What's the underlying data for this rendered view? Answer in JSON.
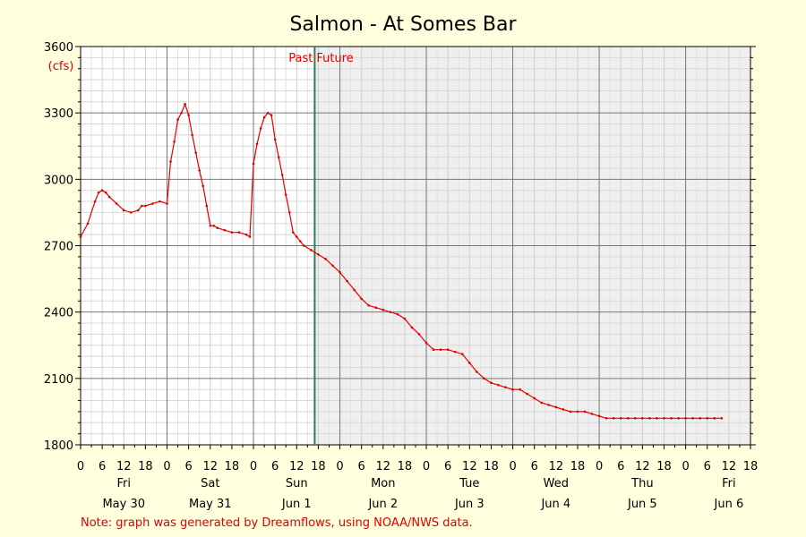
{
  "chart_data": {
    "type": "line",
    "title": "Salmon - At Somes Bar",
    "units": "(cfs)",
    "ylim": [
      1800,
      3600
    ],
    "y_ticks": [
      1800,
      2100,
      2400,
      2700,
      3000,
      3300,
      3600
    ],
    "x_range_hours": [
      0,
      186
    ],
    "hour_ticks": [
      "0",
      "6",
      "12",
      "18",
      "0",
      "6",
      "12",
      "18",
      "0",
      "6",
      "12",
      "18",
      "0",
      "6",
      "12",
      "18",
      "0",
      "6",
      "12",
      "18",
      "0",
      "6",
      "12",
      "18",
      "0",
      "6",
      "12",
      "18",
      "0",
      "6",
      "12",
      "18"
    ],
    "days": [
      {
        "weekday": "Fri",
        "date": "May 30"
      },
      {
        "weekday": "Sat",
        "date": "May 31"
      },
      {
        "weekday": "Sun",
        "date": "Jun 1"
      },
      {
        "weekday": "Mon",
        "date": "Jun 2"
      },
      {
        "weekday": "Tue",
        "date": "Jun 3"
      },
      {
        "weekday": "Wed",
        "date": "Jun 4"
      },
      {
        "weekday": "Thu",
        "date": "Jun 5"
      },
      {
        "weekday": "Fri",
        "date": "Jun 6"
      }
    ],
    "now_hour": 65,
    "past_label": "Past",
    "future_label": "Future",
    "note": "Note: graph was generated by Dreamflows, using NOAA/NWS data.",
    "series": [
      {
        "color": "#e00000",
        "x": [
          0,
          2,
          4,
          5,
          6,
          7,
          8,
          10,
          12,
          14,
          16,
          17,
          18,
          20,
          22,
          24,
          25,
          26,
          27,
          28,
          29,
          30,
          31,
          32,
          33,
          34,
          35,
          36,
          37,
          38,
          40,
          42,
          44,
          46,
          47,
          48,
          49,
          50,
          51,
          52,
          53,
          54,
          55,
          56,
          57,
          58,
          59,
          60,
          61,
          62,
          64,
          66,
          68,
          70,
          72,
          74,
          76,
          78,
          80,
          82,
          84,
          86,
          88,
          90,
          92,
          94,
          96,
          98,
          100,
          102,
          104,
          106,
          108,
          110,
          112,
          114,
          116,
          118,
          120,
          122,
          124,
          126,
          128,
          130,
          132,
          134,
          136,
          138,
          140,
          142,
          144,
          146,
          148,
          150,
          152,
          154,
          156,
          158,
          160,
          162,
          164,
          166,
          168,
          170,
          172,
          174,
          176,
          178
        ],
        "y": [
          2740,
          2800,
          2900,
          2940,
          2950,
          2940,
          2920,
          2890,
          2860,
          2850,
          2860,
          2880,
          2880,
          2890,
          2900,
          2890,
          3080,
          3170,
          3270,
          3300,
          3340,
          3290,
          3200,
          3120,
          3040,
          2970,
          2880,
          2790,
          2790,
          2780,
          2770,
          2760,
          2760,
          2750,
          2740,
          3070,
          3160,
          3230,
          3280,
          3300,
          3290,
          3180,
          3100,
          3020,
          2930,
          2850,
          2760,
          2740,
          2720,
          2700,
          2680,
          2660,
          2640,
          2610,
          2580,
          2540,
          2500,
          2460,
          2430,
          2420,
          2410,
          2400,
          2390,
          2370,
          2330,
          2300,
          2260,
          2230,
          2230,
          2230,
          2220,
          2210,
          2170,
          2130,
          2100,
          2080,
          2070,
          2060,
          2050,
          2050,
          2030,
          2010,
          1990,
          1980,
          1970,
          1960,
          1950,
          1950,
          1950,
          1940,
          1930,
          1920,
          1920,
          1920,
          1920,
          1920,
          1920,
          1920,
          1920,
          1920,
          1920,
          1920,
          1920,
          1920,
          1920,
          1920,
          1920,
          1920
        ]
      }
    ]
  }
}
